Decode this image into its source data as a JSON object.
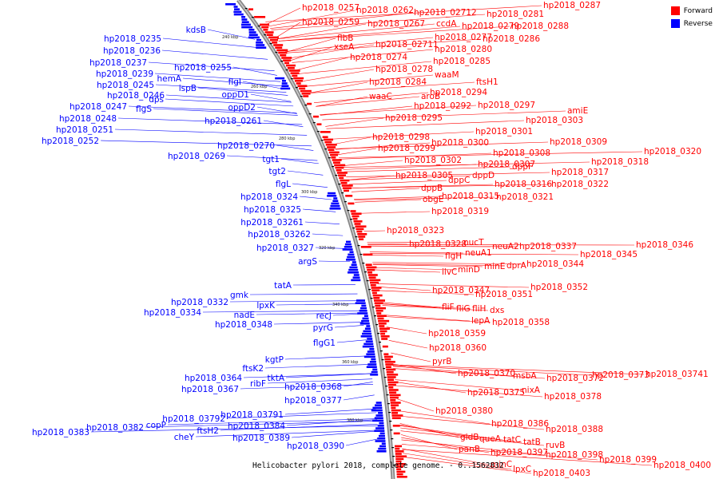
{
  "legend": {
    "forward": {
      "label": "Forward",
      "color": "#ff0000"
    },
    "reverse": {
      "label": "Reverse",
      "color": "#0000ff"
    }
  },
  "caption": "Helicobacter pylori 2018, complete genome. - 0..1562832",
  "backbone_color": "#888888",
  "ticks": [
    "240 kbp",
    "260 kbp",
    "280 kbp",
    "300 kbp",
    "320 kbp",
    "340 kbp",
    "360 kbp",
    "380 kbp"
  ],
  "forward_labels": [
    "hp2018_0257",
    "hp2018_0262",
    "hp2018_02712",
    "hp2018_0281",
    "hp2018_0287",
    "hp2018_0259",
    "hp2018_0267",
    "ccdA",
    "hp2018_0279",
    "hp2018_0288",
    "flbB",
    "hp2018_0277",
    "hp2018_0286",
    "xseA",
    "hp2018_02711",
    "hp2018_0280",
    "hp2018_0274",
    "hp2018_0285",
    "hp2018_0278",
    "waaM",
    "hp2018_0284",
    "ftsH1",
    "waaC",
    "aroB",
    "hp2018_0294",
    "hp2018_0292",
    "hp2018_0297",
    "amiE",
    "hp2018_0295",
    "hp2018_0303",
    "hp2018_0301",
    "hp2018_0298",
    "hp2018_0300",
    "hp2018_0309",
    "hp2018_0299",
    "hp2018_0308",
    "hp2018_0320",
    "hp2018_0302",
    "hp2018_0307",
    "hp2018_0318",
    "dppF",
    "hp2018_0305",
    "dppD",
    "hp2018_0317",
    "dppC",
    "hp2018_0316",
    "hp2018_0322",
    "dppB",
    "obgE",
    "hp2018_0315",
    "hp2018_0321",
    "hp2018_0319",
    "hp2018_0323",
    "hp2018_0328",
    "nucT",
    "neuA2",
    "hp2018_0337",
    "hp2018_0346",
    "flgH",
    "neuA1",
    "hp2018_0345",
    "minE",
    "dprA",
    "hp2018_0344",
    "ilvC",
    "minD",
    "hp2018_0347",
    "hp2018_0352",
    "hp2018_0351",
    "fliF",
    "fliG",
    "fliH",
    "dxs",
    "lepA",
    "hp2018_0358",
    "hp2018_0359",
    "hp2018_0360",
    "pyrB",
    "hp2018_0370",
    "msbA",
    "hp2018_0372",
    "hp2018_0373",
    "hp2018_03741",
    "hp2018_0375",
    "nixA",
    "hp2018_0378",
    "hp2018_0380",
    "hp2018_0386",
    "hp2018_0388",
    "gidB",
    "queA",
    "tatC",
    "tatB",
    "ruvB",
    "panB",
    "hp2018_0397",
    "hp2018_0398",
    "hp2018_0399",
    "minC",
    "hp2018_0400",
    "lpxC",
    "hp2018_0403"
  ],
  "reverse_labels": [
    "kdsB",
    "hp2018_0235",
    "hp2018_0236",
    "hp2018_0237",
    "hp2018_0255",
    "hp2018_0239",
    "hemA",
    "ispB",
    "hp2018_0245",
    "hp2018_0246",
    "dps",
    "hp2018_0247",
    "flgS",
    "hp2018_0248",
    "hp2018_0251",
    "hp2018_0252",
    "flgI",
    "oppD1",
    "oppD2",
    "hp2018_0261",
    "hp2018_0270",
    "hp2018_0269",
    "tgt1",
    "tgt2",
    "flgL",
    "hp2018_0324",
    "hp2018_0325",
    "hp2018_03261",
    "hp2018_03262",
    "hp2018_0327",
    "argS",
    "tatA",
    "gmk",
    "hp2018_0332",
    "lpxK",
    "hp2018_0334",
    "nadE",
    "recJ",
    "hp2018_0348",
    "pyrG",
    "flgG1",
    "kgtP",
    "ftsK2",
    "tktA",
    "hp2018_0364",
    "ribF",
    "hp2018_0368",
    "hp2018_0367",
    "hp2018_0377",
    "hp2018_03791",
    "hp2018_03792",
    "copP",
    "hp2018_0384",
    "hp2018_0382",
    "hp2018_0383",
    "ftsH2",
    "cheY",
    "hp2018_0389",
    "hp2018_0390"
  ]
}
